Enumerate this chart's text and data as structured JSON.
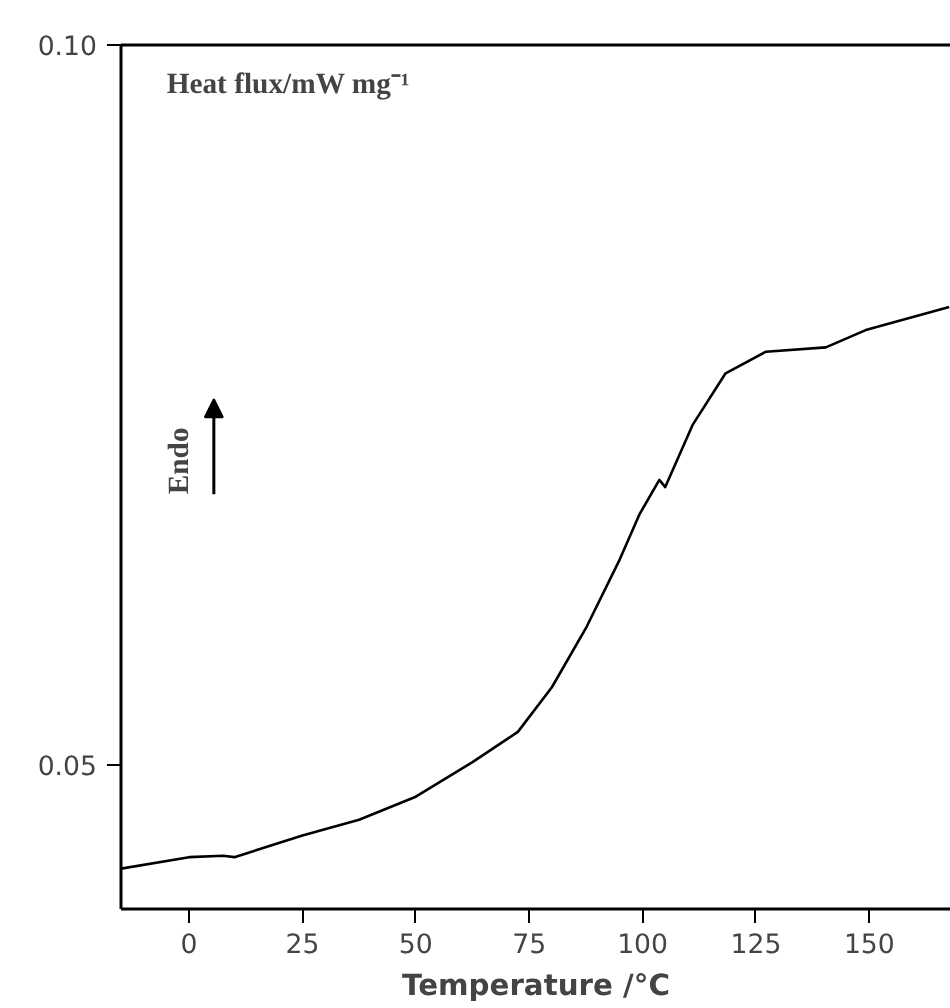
{
  "chart_data": {
    "type": "line",
    "xlabel": "Temperature /°C",
    "ylabel": "Heat flux/mW mg⁻¹",
    "annotations": [
      "Endo"
    ],
    "x": [
      -15,
      0,
      7.5,
      10,
      25,
      37.5,
      50,
      62.5,
      72.5,
      80,
      87.5,
      95,
      99.3,
      103.7,
      105,
      111,
      118.3,
      127.2,
      140.4,
      149.2,
      167.6
    ],
    "series": [
      {
        "color": "#000000",
        "values": [
          0.0428,
          0.0436,
          0.0437,
          0.0436,
          0.0451,
          0.0462,
          0.0478,
          0.0502,
          0.0523,
          0.0554,
          0.0595,
          0.0643,
          0.0674,
          0.0698,
          0.0693,
          0.0736,
          0.0772,
          0.0787,
          0.079,
          0.0802,
          0.0818
        ]
      }
    ],
    "xlim": [
      -15,
      168
    ],
    "ylim": [
      0.04,
      0.1
    ],
    "xticks": [
      0,
      25,
      50,
      75,
      100,
      125,
      150
    ],
    "yticks": [
      0.05,
      {
        "value": 0.1,
        "label": "0.10"
      }
    ],
    "grid": false,
    "marker": "none",
    "line_style": "solid"
  }
}
